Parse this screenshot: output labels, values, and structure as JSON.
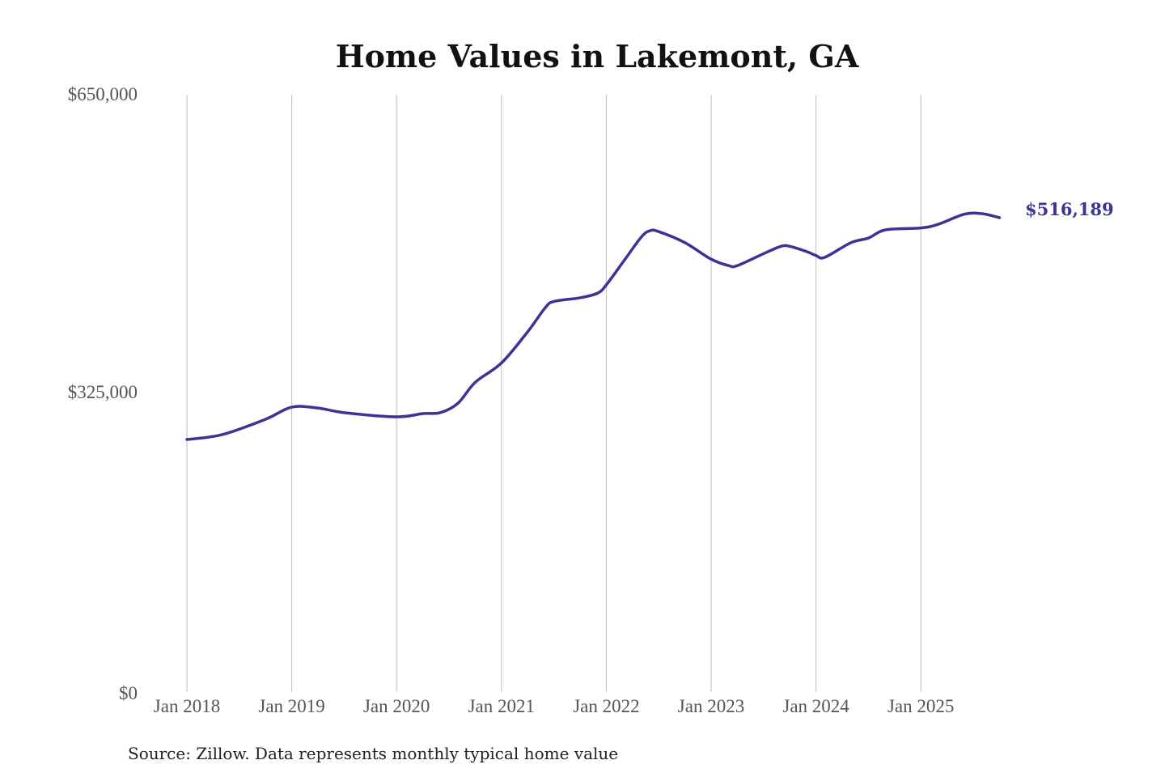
{
  "chart_data": {
    "type": "line",
    "title": "Home Values in Lakemont, GA",
    "xlabel": "",
    "ylabel": "",
    "ylim": [
      0,
      650000
    ],
    "y_ticks": [
      0,
      325000,
      650000
    ],
    "y_tick_labels": [
      "$0",
      "$325,000",
      "$650,000"
    ],
    "x_ticks": [
      "2018-01",
      "2019-01",
      "2020-01",
      "2021-01",
      "2022-01",
      "2023-01",
      "2024-01",
      "2025-01"
    ],
    "x_tick_labels": [
      "Jan 2018",
      "Jan 2019",
      "Jan 2020",
      "Jan 2021",
      "Jan 2022",
      "Jan 2023",
      "Jan 2024",
      "Jan 2025"
    ],
    "grid": "vertical",
    "line_color": "#3b3497",
    "x": [
      "2018-01",
      "2018-05",
      "2018-10",
      "2019-01",
      "2019-04",
      "2019-07",
      "2020-01",
      "2020-04",
      "2020-06",
      "2020-08",
      "2020-10",
      "2021-01",
      "2021-04",
      "2021-06",
      "2021-07",
      "2021-10",
      "2021-12",
      "2022-01",
      "2022-03",
      "2022-05",
      "2022-06",
      "2022-07",
      "2022-10",
      "2023-01",
      "2023-03",
      "2023-04",
      "2023-07",
      "2023-09",
      "2023-10",
      "2023-12",
      "2024-01",
      "2024-02",
      "2024-05",
      "2024-07",
      "2024-09",
      "2025-01",
      "2025-03",
      "2025-06",
      "2025-08",
      "2025-10"
    ],
    "values": [
      274800,
      280000,
      296800,
      310000,
      309000,
      304000,
      299500,
      303000,
      304000,
      314000,
      337000,
      358000,
      392000,
      418000,
      425000,
      429000,
      434000,
      443000,
      469000,
      495000,
      502000,
      501000,
      489000,
      471000,
      464000,
      464000,
      477000,
      485000,
      485000,
      479000,
      475000,
      473000,
      489000,
      494000,
      503000,
      505000,
      509000,
      520000,
      520500,
      516189
    ],
    "end_label": "$516,189",
    "source": "Source: Zillow. Data represents monthly typical home value"
  }
}
